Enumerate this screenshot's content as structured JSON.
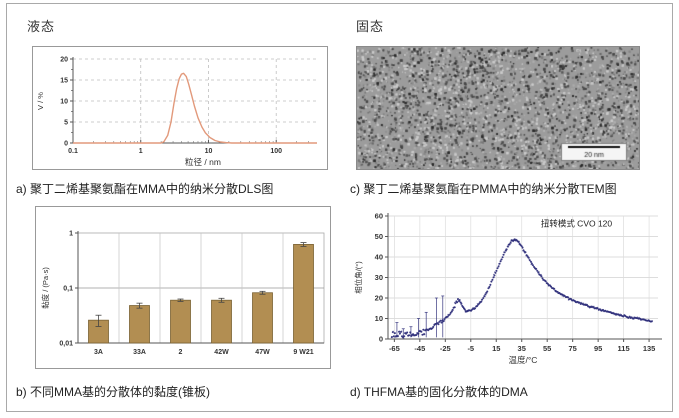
{
  "panels": {
    "top_left": {
      "state_label": "液态",
      "caption": "a) 聚丁二烯基聚氨酯在MMA中的纳米分散DLS图"
    },
    "top_right": {
      "state_label": "固态",
      "caption": "c) 聚丁二烯基聚氨酯在PMMA中的纳米分散TEM图",
      "tem_scale_label": "20 nm"
    },
    "bottom_left": {
      "caption": "b) 不同MMA基的分散体的黏度(锥板)"
    },
    "bottom_right": {
      "caption": "d) THFMA基的固化分散体的DMA"
    }
  },
  "colors": {
    "frame_border": "#a9a9a9",
    "box_border": "#999999",
    "dls_curve": "#e2997b",
    "bar_fill": "#b28e52",
    "bar_border": "#7a6234",
    "dma_points": "#2e2e7a",
    "grid": "#bfbfbf",
    "axis": "#555555",
    "text": "#333333"
  },
  "chart_data": [
    {
      "id": "dls",
      "type": "line",
      "xlabel": "粒径 / nm",
      "ylabel": "V / %",
      "x_scale": "log",
      "xlim": [
        0.1,
        400
      ],
      "ylim": [
        0,
        20
      ],
      "x_ticks": [
        {
          "v": 0.1,
          "label": "0.1"
        },
        {
          "v": 1,
          "label": "1"
        },
        {
          "v": 10,
          "label": "10"
        },
        {
          "v": 100,
          "label": "100"
        }
      ],
      "y_ticks": [
        0,
        5,
        10,
        15,
        20
      ],
      "grid": "dashed",
      "line_color": "#e2997b",
      "points": [
        [
          0.1,
          0
        ],
        [
          1.0,
          0
        ],
        [
          1.6,
          0
        ],
        [
          2.0,
          0
        ],
        [
          2.2,
          0.3
        ],
        [
          2.5,
          1.8
        ],
        [
          2.8,
          5
        ],
        [
          3.1,
          9.5
        ],
        [
          3.4,
          13
        ],
        [
          3.7,
          15.3
        ],
        [
          4.0,
          16.4
        ],
        [
          4.3,
          16.6
        ],
        [
          4.7,
          15.8
        ],
        [
          5.1,
          14
        ],
        [
          5.6,
          11.6
        ],
        [
          6.2,
          8.8
        ],
        [
          7.0,
          6
        ],
        [
          8.0,
          3.8
        ],
        [
          9.0,
          2.4
        ],
        [
          10.5,
          1.3
        ],
        [
          12.5,
          0.6
        ],
        [
          15,
          0.25
        ],
        [
          18,
          0.1
        ],
        [
          22,
          0
        ],
        [
          100,
          0
        ],
        [
          400,
          0
        ]
      ]
    },
    {
      "id": "viscosity",
      "type": "bar",
      "ylabel": "黏度 / (Pa·s)",
      "y_scale": "log",
      "ylim": [
        0.01,
        1
      ],
      "y_ticks": [
        {
          "v": 1,
          "label": "1"
        },
        {
          "v": 0.1,
          "label": "0,1"
        },
        {
          "v": 0.01,
          "label": "0,01"
        }
      ],
      "categories": [
        "3A",
        "33A",
        "2",
        "42W",
        "47W",
        "9 W21"
      ],
      "values": [
        0.026,
        0.048,
        0.06,
        0.06,
        0.082,
        0.62
      ],
      "errors": [
        0.006,
        0.005,
        0.003,
        0.005,
        0.005,
        0.05
      ],
      "bar_color": "#b28e52",
      "bar_border": "#7a6234"
    },
    {
      "id": "dma",
      "type": "scatter",
      "xlabel": "温度/°C",
      "ylabel": "相位角/(°)",
      "xlim": [
        -70,
        142
      ],
      "ylim": [
        0,
        60
      ],
      "x_ticks": [
        -65,
        -45,
        -25,
        -5,
        15,
        35,
        55,
        75,
        95,
        115,
        135
      ],
      "y_ticks": [
        0,
        10,
        20,
        30,
        40,
        50,
        60
      ],
      "annotation": {
        "text": "扭转模式 CVO 120",
        "x": 78,
        "y": 55
      },
      "point_color": "#2e2e7a",
      "curve": [
        [
          -67,
          2
        ],
        [
          -63,
          2.4
        ],
        [
          -59,
          2
        ],
        [
          -55,
          2.6
        ],
        [
          -51,
          2.2
        ],
        [
          -47,
          2.8
        ],
        [
          -43,
          3.4
        ],
        [
          -40,
          4
        ],
        [
          -36,
          5.5
        ],
        [
          -32,
          7
        ],
        [
          -28,
          8.6
        ],
        [
          -24,
          10.5
        ],
        [
          -20,
          13
        ],
        [
          -17,
          17
        ],
        [
          -15,
          19.5
        ],
        [
          -13,
          18
        ],
        [
          -11,
          15.5
        ],
        [
          -9,
          13.8
        ],
        [
          -7,
          13.5
        ],
        [
          -4,
          14.2
        ],
        [
          0,
          16
        ],
        [
          4,
          19
        ],
        [
          8,
          23.5
        ],
        [
          12,
          29
        ],
        [
          16,
          34.5
        ],
        [
          20,
          40
        ],
        [
          24,
          45
        ],
        [
          27,
          47.8
        ],
        [
          29,
          48.5
        ],
        [
          31,
          48
        ],
        [
          34,
          46
        ],
        [
          38,
          42
        ],
        [
          43,
          37
        ],
        [
          48,
          32.5
        ],
        [
          53,
          28.5
        ],
        [
          58,
          25.5
        ],
        [
          63,
          23
        ],
        [
          68,
          21
        ],
        [
          73,
          19.5
        ],
        [
          78,
          18.2
        ],
        [
          83,
          17
        ],
        [
          88,
          16
        ],
        [
          93,
          15
        ],
        [
          98,
          14
        ],
        [
          103,
          13.2
        ],
        [
          108,
          12.4
        ],
        [
          113,
          11.6
        ],
        [
          118,
          10.8
        ],
        [
          123,
          10.2
        ],
        [
          128,
          9.6
        ],
        [
          133,
          9
        ],
        [
          138,
          8.5
        ]
      ],
      "noise_spikes": [
        [
          -63,
          8
        ],
        [
          -58,
          5
        ],
        [
          -52,
          6
        ],
        [
          -46,
          10
        ],
        [
          -40,
          13
        ],
        [
          -32,
          20
        ],
        [
          -27,
          21
        ]
      ]
    }
  ]
}
